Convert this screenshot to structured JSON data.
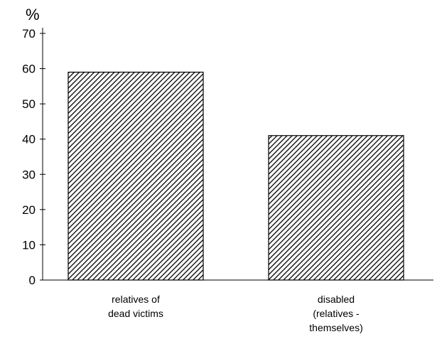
{
  "chart_data": {
    "type": "bar",
    "title": "",
    "xlabel": "",
    "ylabel": "%",
    "ylim": [
      0,
      70
    ],
    "yticks": [
      0,
      10,
      20,
      30,
      40,
      50,
      60,
      70
    ],
    "categories": [
      [
        "relatives of",
        "dead victims"
      ],
      [
        "disabled",
        "(relatives -",
        "themselves)"
      ]
    ],
    "values": [
      59,
      41
    ],
    "bar_pattern": "diagonal-hatch",
    "grid": false,
    "legend": "none"
  }
}
